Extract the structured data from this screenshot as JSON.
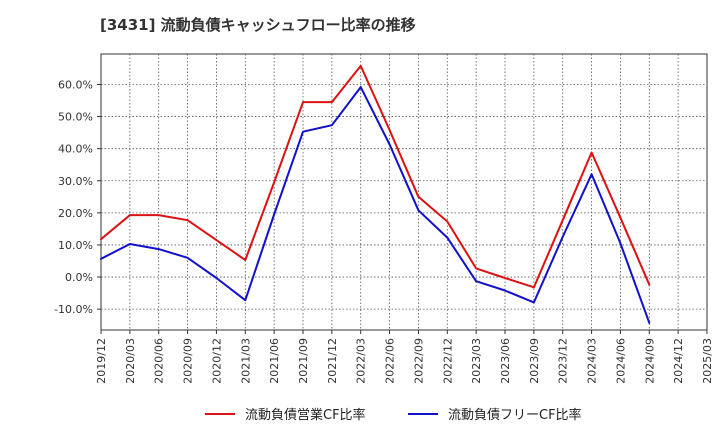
{
  "chart_data": {
    "type": "line",
    "title": "[3431]  流動負債キャッシュフロー比率の推移",
    "xlabel": "",
    "ylabel": "",
    "ylim": [
      -16.5,
      69.5
    ],
    "yticks": [
      60,
      50,
      40,
      30,
      20,
      10,
      0,
      -10
    ],
    "ytick_labels": [
      "60.0%",
      "50.0%",
      "40.0%",
      "30.0%",
      "20.0%",
      "10.0%",
      "0.0%",
      "-10.0%"
    ],
    "x": [
      "2019/12",
      "2020/03",
      "2020/06",
      "2020/09",
      "2020/12",
      "2021/03",
      "2021/06",
      "2021/09",
      "2021/12",
      "2022/03",
      "2022/06",
      "2022/09",
      "2022/12",
      "2023/03",
      "2023/06",
      "2023/09",
      "2023/12",
      "2024/03",
      "2024/06",
      "2024/09",
      "2024/12",
      "2025/03"
    ],
    "grid": true,
    "legend_position": "bottom",
    "series": [
      {
        "name": "流動負債営業CF比率",
        "color": "#dd1111",
        "values": [
          11.8,
          19.3,
          19.3,
          17.7,
          11.5,
          5.3,
          29.5,
          54.5,
          54.5,
          65.8,
          45.8,
          25.0,
          17.3,
          2.7,
          -0.3,
          -3.2,
          17.7,
          38.8,
          18.5,
          -2.4,
          null,
          null
        ]
      },
      {
        "name": "流動負債フリーCF比率",
        "color": "#1111cc",
        "values": [
          5.7,
          10.3,
          8.7,
          6.0,
          -0.3,
          -7.2,
          19.5,
          45.3,
          47.3,
          59.2,
          41.3,
          20.8,
          12.3,
          -1.3,
          -4.2,
          -7.9,
          12.5,
          32.0,
          10.5,
          -14.3,
          null,
          null
        ]
      }
    ]
  }
}
